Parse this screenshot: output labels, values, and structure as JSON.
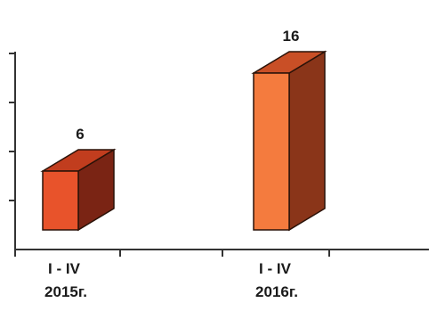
{
  "chart_data": {
    "type": "bar",
    "categories": [
      {
        "line1": "I - IV",
        "line2": "2015г."
      },
      {
        "line1": "I - IV",
        "line2": "2016г."
      }
    ],
    "values": [
      6,
      16
    ],
    "value_labels": [
      "6",
      "16"
    ],
    "ylim": [
      0,
      18
    ],
    "grid": false,
    "colors": {
      "bar_front": [
        "#e8532b",
        "#f47b3e"
      ],
      "bar_side": [
        "#7a2414",
        "#8a3519"
      ],
      "bar_top": [
        "#c13d1e",
        "#c94f26"
      ],
      "outline": "#2a1208",
      "axis": "#333333"
    }
  }
}
